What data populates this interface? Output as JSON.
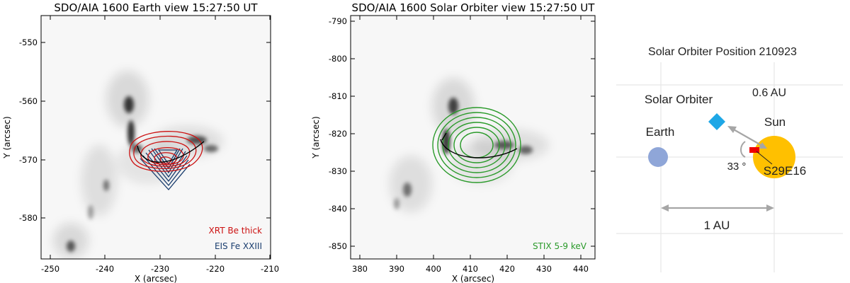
{
  "panels": [
    {
      "title": "SDO/AIA 1600 Earth view 15:27:50 UT",
      "xlabel": "X (arcsec)",
      "ylabel": "Y (arcsec)",
      "xticks": [
        "-250",
        "-240",
        "-230",
        "-220",
        "-210"
      ],
      "yticks": [
        "-550",
        "-560",
        "-570",
        "-580"
      ],
      "legend": [
        {
          "text": "XRT Be thick",
          "color": "#cc1111"
        },
        {
          "text": "EIS Fe XXIII",
          "color": "#1a3d6e"
        }
      ]
    },
    {
      "title": "SDO/AIA 1600 Solar Orbiter view 15:27:50 UT",
      "xlabel": "X (arcsec)",
      "ylabel": "Y (arcsec)",
      "xticks": [
        "380",
        "390",
        "400",
        "410",
        "420",
        "430",
        "440"
      ],
      "yticks": [
        "-790",
        "-800",
        "-810",
        "-820",
        "-830",
        "-840",
        "-850"
      ],
      "legend": [
        {
          "text": "STIX 5-9 keV",
          "color": "#2a9a2a"
        }
      ]
    }
  ],
  "diagram": {
    "title": "Solar Orbiter Position 210923",
    "solar_orbiter_label": "Solar Orbiter",
    "distance_label": "0.6 AU",
    "sun_label": "Sun",
    "earth_label": "Earth",
    "angle_label": "33 °",
    "location_label": "S29E16",
    "baseline_label": "1 AU",
    "colors": {
      "sun": "#ffc000",
      "earth": "#8fa6d8",
      "orbiter": "#1ea7e6",
      "marker": "#ee0000"
    }
  }
}
